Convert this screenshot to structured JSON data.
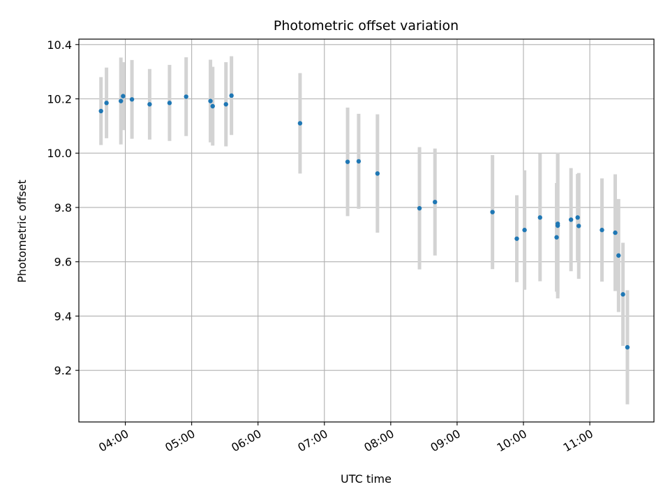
{
  "chart_data": {
    "type": "scatter",
    "title": "Photometric offset variation",
    "xlabel": "UTC time",
    "ylabel": "Photometric offset",
    "x_is_time": true,
    "xlim": [
      "03:18",
      "11:58"
    ],
    "ylim": [
      9.01,
      10.42
    ],
    "x_ticks": [
      "04:00",
      "05:00",
      "06:00",
      "07:00",
      "08:00",
      "09:00",
      "10:00",
      "11:00"
    ],
    "y_ticks": [
      "9.2",
      "9.4",
      "9.6",
      "9.8",
      "10.0",
      "10.2",
      "10.4"
    ],
    "grid": true,
    "point_color": "#1f77b4",
    "errorbar_color": "#d3d3d3",
    "series": [
      {
        "points": [
          {
            "x": "03:38",
            "y": 10.155,
            "err": 0.125
          },
          {
            "x": "03:43",
            "y": 10.185,
            "err": 0.13
          },
          {
            "x": "03:56",
            "y": 10.192,
            "err": 0.16
          },
          {
            "x": "03:58",
            "y": 10.21,
            "err": 0.125
          },
          {
            "x": "04:06",
            "y": 10.198,
            "err": 0.145
          },
          {
            "x": "04:22",
            "y": 10.18,
            "err": 0.13
          },
          {
            "x": "04:40",
            "y": 10.185,
            "err": 0.14
          },
          {
            "x": "04:55",
            "y": 10.208,
            "err": 0.145
          },
          {
            "x": "05:17",
            "y": 10.192,
            "err": 0.152
          },
          {
            "x": "05:19",
            "y": 10.173,
            "err": 0.145
          },
          {
            "x": "05:31",
            "y": 10.18,
            "err": 0.155
          },
          {
            "x": "05:36",
            "y": 10.212,
            "err": 0.145
          },
          {
            "x": "06:38",
            "y": 10.11,
            "err": 0.185
          },
          {
            "x": "07:21",
            "y": 9.968,
            "err": 0.2
          },
          {
            "x": "07:31",
            "y": 9.97,
            "err": 0.175
          },
          {
            "x": "07:48",
            "y": 9.925,
            "err": 0.218
          },
          {
            "x": "08:26",
            "y": 9.797,
            "err": 0.225
          },
          {
            "x": "08:40",
            "y": 9.82,
            "err": 0.197
          },
          {
            "x": "09:32",
            "y": 9.783,
            "err": 0.21
          },
          {
            "x": "09:54",
            "y": 9.685,
            "err": 0.16
          },
          {
            "x": "10:01",
            "y": 9.717,
            "err": 0.22
          },
          {
            "x": "10:15",
            "y": 9.763,
            "err": 0.235
          },
          {
            "x": "10:30",
            "y": 9.69,
            "err": 0.2
          },
          {
            "x": "10:31",
            "y": 9.74,
            "err": 0.258
          },
          {
            "x": "10:31",
            "y": 9.733,
            "err": 0.268
          },
          {
            "x": "10:43",
            "y": 9.755,
            "err": 0.19
          },
          {
            "x": "10:49",
            "y": 9.763,
            "err": 0.16
          },
          {
            "x": "10:50",
            "y": 9.732,
            "err": 0.195
          },
          {
            "x": "11:11",
            "y": 9.717,
            "err": 0.19
          },
          {
            "x": "11:23",
            "y": 9.707,
            "err": 0.215
          },
          {
            "x": "11:26",
            "y": 9.623,
            "err": 0.208
          },
          {
            "x": "11:30",
            "y": 9.48,
            "err": 0.19
          },
          {
            "x": "11:34",
            "y": 9.285,
            "err": 0.21
          }
        ]
      }
    ]
  }
}
